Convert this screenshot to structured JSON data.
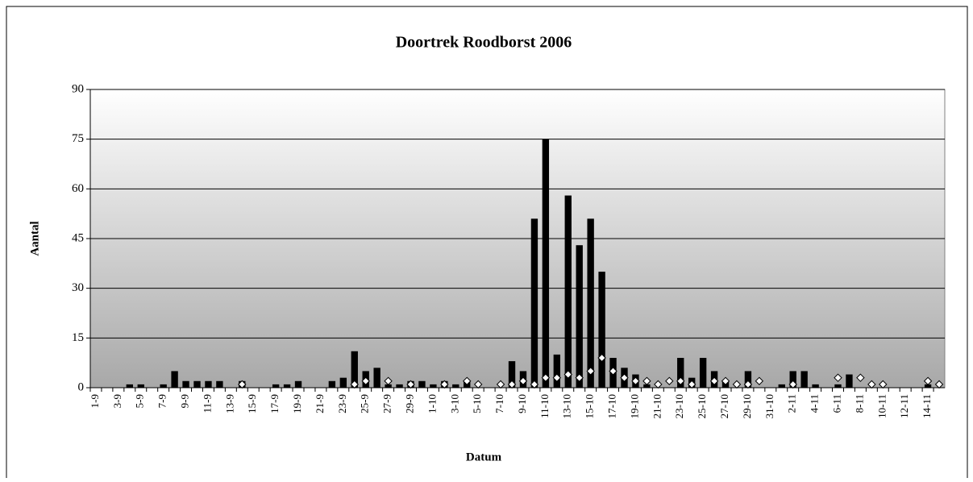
{
  "chart_data": {
    "type": "bar",
    "title": "Doortrek Roodborst 2006",
    "x_label": "Datum",
    "y_label": "Aantal",
    "categories": [
      "1-9",
      null,
      "3-9",
      null,
      "5-9",
      null,
      "7-9",
      null,
      "9-9",
      null,
      "11-9",
      null,
      "13-9",
      null,
      "15-9",
      null,
      "17-9",
      null,
      "19-9",
      null,
      "21-9",
      null,
      "23-9",
      null,
      "25-9",
      null,
      "27-9",
      null,
      "29-9",
      null,
      "1-10",
      null,
      "3-10",
      null,
      "5-10",
      null,
      "7-10",
      null,
      "9-10",
      null,
      "11-10",
      null,
      "13-10",
      null,
      "15-10",
      null,
      "17-10",
      null,
      "19-10",
      null,
      "21-10",
      null,
      "23-10",
      null,
      "25-10",
      null,
      "27-10",
      null,
      "29-10",
      null,
      "31-10",
      null,
      "2-11",
      null,
      "4-11",
      null,
      "6-11",
      null,
      "8-11",
      null,
      "10-11",
      null,
      "12-11",
      null,
      "14-11",
      null
    ],
    "series": [
      {
        "type": "bar",
        "color": "#000000",
        "values": [
          0,
          0,
          0,
          1,
          1,
          0,
          1,
          5,
          2,
          2,
          2,
          2,
          0,
          2,
          0,
          0,
          1,
          1,
          2,
          0,
          0,
          2,
          3,
          11,
          5,
          6,
          1,
          1,
          2,
          2,
          1,
          2,
          1,
          2,
          0,
          0,
          0,
          8,
          5,
          51,
          75,
          10,
          58,
          43,
          51,
          35,
          9,
          6,
          4,
          1,
          0,
          0,
          9,
          3,
          9,
          5,
          2,
          0,
          5,
          0,
          0,
          1,
          5,
          5,
          1,
          0,
          1,
          4,
          0,
          0,
          0,
          0,
          0,
          0,
          1,
          0
        ]
      },
      {
        "type": "scatter",
        "color": "#ffffff",
        "values": [
          null,
          null,
          null,
          null,
          null,
          null,
          null,
          null,
          null,
          null,
          null,
          null,
          null,
          1,
          null,
          null,
          null,
          null,
          null,
          null,
          null,
          null,
          null,
          1,
          2,
          null,
          2,
          null,
          1,
          null,
          null,
          1,
          null,
          2,
          1,
          null,
          1,
          1,
          2,
          1,
          3,
          3,
          4,
          3,
          5,
          9,
          5,
          3,
          2,
          2,
          1,
          2,
          2,
          1,
          null,
          2,
          2,
          1,
          1,
          2,
          null,
          null,
          1,
          null,
          null,
          null,
          3,
          null,
          3,
          1,
          1,
          null,
          null,
          null,
          2,
          1
        ]
      }
    ],
    "ylim": [
      0,
      90
    ],
    "yticks": [
      0,
      15,
      30,
      45,
      60,
      75,
      90
    ],
    "grid": true
  }
}
